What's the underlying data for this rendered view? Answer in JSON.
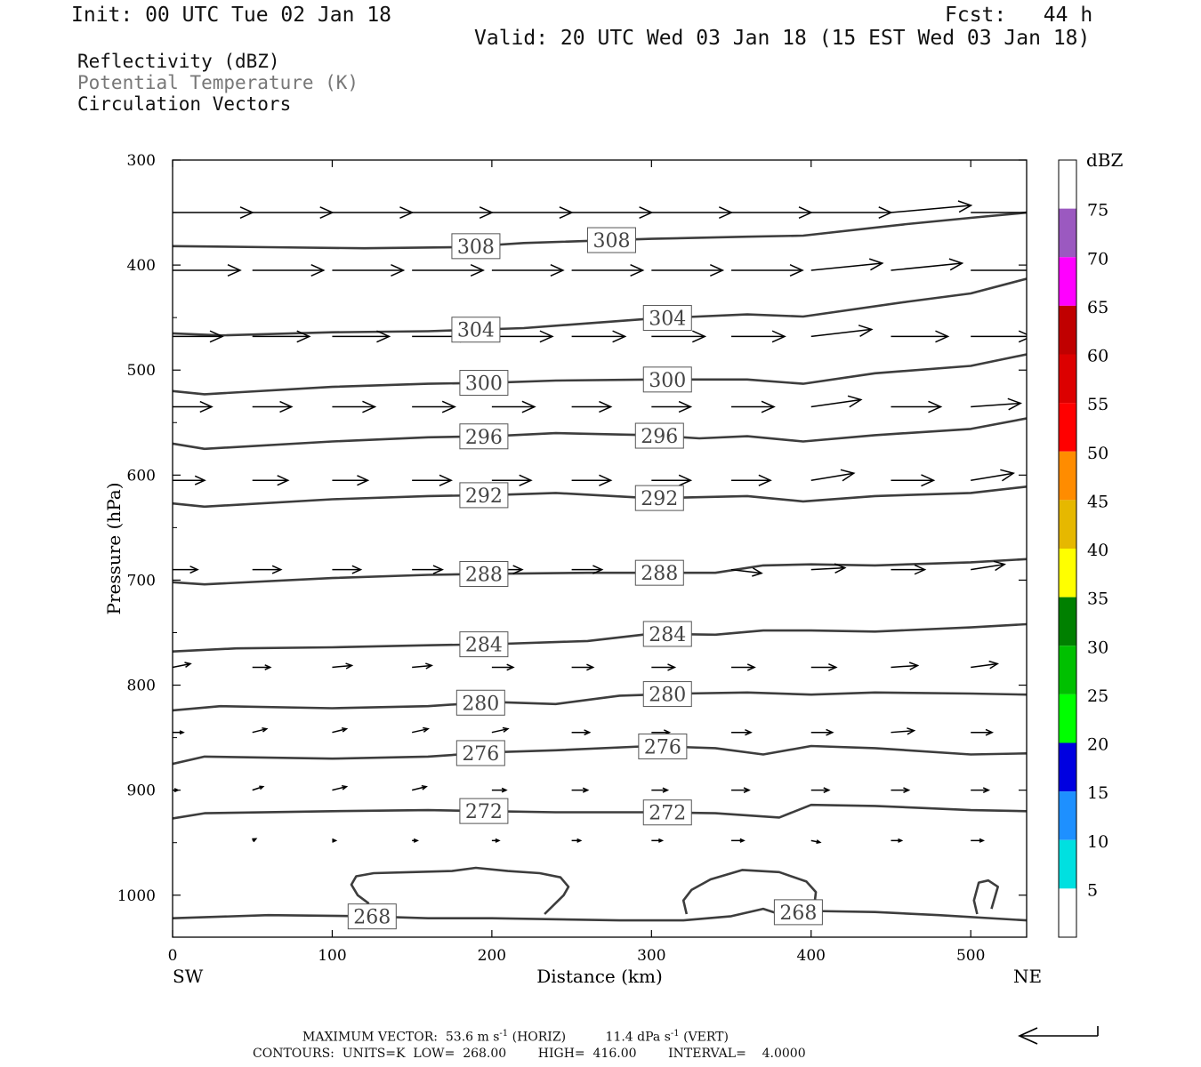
{
  "header": {
    "init": "Init: 00 UTC Tue 02 Jan 18",
    "fcst": "Fcst:   44 h",
    "valid": "Valid: 20 UTC Wed 03 Jan 18 (15 EST Wed 03 Jan 18)"
  },
  "fields": [
    "Reflectivity (dBZ)",
    "Potential Temperature (K)",
    "Circulation Vectors"
  ],
  "colors": {
    "contour": "#3d3d3d",
    "axis": "#000000",
    "label_box": "#555555"
  },
  "chart_data": {
    "type": "cross-section",
    "xlabel": "Distance (km)",
    "ylabel": "Pressure (hPa)",
    "xlim": [
      0,
      535
    ],
    "ylim": [
      1040,
      300
    ],
    "x_ticks": [
      0,
      100,
      200,
      300,
      400,
      500
    ],
    "y_ticks": [
      300,
      400,
      500,
      600,
      700,
      800,
      900,
      1000
    ],
    "x_end_labels": {
      "left": "SW",
      "right": "NE"
    },
    "theta_contours": [
      {
        "level": 308,
        "label": "308",
        "x": [
          0,
          60,
          120,
          180,
          220,
          300,
          360,
          395,
          460,
          500,
          535
        ],
        "p": [
          382,
          383,
          384,
          383,
          379,
          375,
          373,
          372,
          361,
          355,
          350
        ],
        "labels_at": [
          190,
          275
        ]
      },
      {
        "level": 304,
        "label": "304",
        "x": [
          0,
          30,
          100,
          160,
          220,
          300,
          360,
          395,
          460,
          500,
          535
        ],
        "p": [
          465,
          467,
          464,
          463,
          460,
          451,
          447,
          449,
          435,
          427,
          413
        ],
        "labels_at": [
          190,
          310
        ]
      },
      {
        "level": 300,
        "label": "300",
        "x": [
          0,
          20,
          100,
          160,
          200,
          240,
          300,
          360,
          395,
          440,
          500,
          535
        ],
        "p": [
          520,
          523,
          516,
          513,
          512,
          510,
          509,
          509,
          513,
          503,
          496,
          485
        ],
        "labels_at": [
          195,
          310
        ]
      },
      {
        "level": 296,
        "label": "296",
        "x": [
          0,
          20,
          100,
          160,
          200,
          240,
          300,
          330,
          360,
          395,
          440,
          500,
          535
        ],
        "p": [
          570,
          575,
          568,
          564,
          563,
          560,
          562,
          565,
          563,
          568,
          562,
          556,
          546
        ],
        "labels_at": [
          195,
          305
        ]
      },
      {
        "level": 292,
        "label": "292",
        "x": [
          0,
          20,
          100,
          160,
          200,
          240,
          300,
          360,
          395,
          440,
          500,
          535
        ],
        "p": [
          627,
          630,
          623,
          620,
          619,
          617,
          622,
          620,
          625,
          620,
          617,
          611
        ],
        "labels_at": [
          195,
          305
        ]
      },
      {
        "level": 288,
        "label": "288",
        "x": [
          0,
          20,
          100,
          160,
          200,
          260,
          300,
          340,
          370,
          400,
          440,
          500,
          535
        ],
        "p": [
          702,
          704,
          698,
          695,
          694,
          693,
          693,
          693,
          686,
          685,
          686,
          683,
          680
        ],
        "labels_at": [
          195,
          305
        ]
      },
      {
        "level": 284,
        "label": "284",
        "x": [
          0,
          40,
          100,
          160,
          200,
          260,
          300,
          340,
          370,
          400,
          440,
          500,
          535
        ],
        "p": [
          768,
          765,
          764,
          762,
          761,
          758,
          751,
          752,
          748,
          748,
          749,
          745,
          742
        ],
        "labels_at": [
          195,
          310
        ]
      },
      {
        "level": 280,
        "label": "280",
        "x": [
          0,
          30,
          100,
          160,
          200,
          240,
          280,
          320,
          360,
          400,
          440,
          500,
          535
        ],
        "p": [
          824,
          820,
          822,
          820,
          816,
          818,
          810,
          808,
          807,
          809,
          807,
          808,
          809
        ],
        "labels_at": [
          193,
          310
        ]
      },
      {
        "level": 276,
        "label": "276",
        "x": [
          0,
          20,
          100,
          160,
          200,
          240,
          300,
          340,
          370,
          400,
          440,
          500,
          535
        ],
        "p": [
          875,
          868,
          870,
          868,
          864,
          862,
          858,
          860,
          866,
          858,
          860,
          866,
          865
        ],
        "labels_at": [
          193,
          307
        ]
      },
      {
        "level": 272,
        "label": "272",
        "x": [
          0,
          20,
          100,
          160,
          200,
          240,
          300,
          340,
          380,
          400,
          440,
          500,
          535
        ],
        "p": [
          927,
          922,
          920,
          919,
          920,
          921,
          921,
          922,
          926,
          914,
          915,
          919,
          920
        ],
        "labels_at": [
          195,
          310
        ]
      },
      {
        "level": 268,
        "label": "268",
        "x": [
          0,
          60,
          120,
          160,
          200,
          280,
          320,
          350,
          370,
          380,
          400,
          440,
          480,
          535
        ],
        "p": [
          1022,
          1019,
          1020,
          1022,
          1022,
          1024,
          1024,
          1020,
          1013,
          1018,
          1015,
          1016,
          1019,
          1024
        ],
        "labels_at": [
          125,
          392
        ]
      }
    ],
    "closed_contours": [
      {
        "level": 268,
        "x": [
          233,
          245,
          248,
          243,
          230,
          210,
          190,
          175,
          150,
          126,
          115,
          112,
          116,
          123
        ],
        "p": [
          1018,
          1000,
          992,
          983,
          979,
          977,
          974,
          977,
          978,
          979,
          982,
          990,
          1000,
          1008
        ]
      },
      {
        "level": 268,
        "x": [
          322,
          320,
          325,
          337,
          357,
          380,
          397,
          403,
          402
        ],
        "p": [
          1018,
          1005,
          995,
          985,
          976,
          978,
          987,
          997,
          1010
        ]
      },
      {
        "level": 268,
        "x": [
          504,
          502,
          505,
          511,
          517,
          513
        ],
        "p": [
          1018,
          1005,
          988,
          986,
          992,
          1013
        ]
      }
    ],
    "vector_rows": [
      {
        "p": 350,
        "x": [
          0,
          50,
          100,
          150,
          200,
          250,
          300,
          350,
          400,
          450,
          500
        ],
        "u": [
          45,
          45,
          45,
          45,
          45,
          45,
          45,
          45,
          45,
          45,
          45
        ],
        "w": [
          0,
          0,
          0,
          0,
          0,
          0,
          0,
          0,
          0,
          -4,
          0
        ]
      },
      {
        "p": 405,
        "x": [
          0,
          50,
          100,
          150,
          200,
          250,
          300,
          350,
          400,
          450,
          500
        ],
        "u": [
          38,
          40,
          40,
          40,
          40,
          40,
          40,
          40,
          40,
          40,
          40
        ],
        "w": [
          0,
          0,
          0,
          0,
          0,
          0,
          0,
          0,
          -4,
          -4,
          0
        ]
      },
      {
        "p": 468,
        "x": [
          0,
          50,
          100,
          150,
          200,
          250,
          300,
          350,
          400,
          450,
          500
        ],
        "u": [
          28,
          32,
          32,
          34,
          34,
          30,
          30,
          30,
          34,
          32,
          34
        ],
        "w": [
          0,
          0,
          0,
          0,
          0,
          0,
          0,
          0,
          -4,
          0,
          0
        ]
      },
      {
        "p": 535,
        "x": [
          0,
          50,
          100,
          150,
          200,
          250,
          300,
          350,
          400,
          450,
          500
        ],
        "u": [
          22,
          22,
          24,
          24,
          24,
          22,
          22,
          24,
          28,
          28,
          28
        ],
        "w": [
          0,
          0,
          0,
          0,
          0,
          0,
          0,
          0,
          -4,
          0,
          -2
        ]
      },
      {
        "p": 605,
        "x": [
          0,
          50,
          100,
          150,
          200,
          250,
          300,
          350,
          400,
          450,
          500
        ],
        "u": [
          18,
          20,
          20,
          22,
          22,
          22,
          22,
          22,
          24,
          24,
          24
        ],
        "w": [
          0,
          0,
          0,
          0,
          0,
          0,
          0,
          0,
          -4,
          0,
          -4
        ]
      },
      {
        "p": 690,
        "x": [
          0,
          50,
          100,
          150,
          200,
          250,
          300,
          350,
          400,
          450,
          500
        ],
        "u": [
          14,
          16,
          16,
          17,
          17,
          17,
          17,
          17,
          19,
          19,
          19
        ],
        "w": [
          0,
          0,
          0,
          0,
          0,
          0,
          0,
          2,
          -1,
          0,
          -3
        ]
      },
      {
        "p": 783,
        "x": [
          0,
          50,
          100,
          150,
          200,
          250,
          300,
          350,
          400,
          450,
          500
        ],
        "u": [
          10,
          10,
          11,
          11,
          12,
          12,
          13,
          13,
          14,
          15,
          15
        ],
        "w": [
          -2,
          0,
          -1,
          -1,
          0,
          0,
          0,
          0,
          0,
          -1,
          -2
        ]
      },
      {
        "p": 845,
        "x": [
          0,
          50,
          100,
          150,
          200,
          250,
          300,
          350,
          400,
          450,
          500
        ],
        "u": [
          6,
          8,
          8,
          9,
          9,
          10,
          10,
          11,
          12,
          13,
          12
        ],
        "w": [
          0,
          -2,
          -2,
          -2,
          -2,
          0,
          0,
          0,
          0,
          -1,
          0
        ]
      },
      {
        "p": 900,
        "x": [
          0,
          50,
          100,
          150,
          200,
          250,
          300,
          350,
          400,
          450,
          500
        ],
        "u": [
          3,
          6,
          8,
          8,
          8,
          9,
          9,
          10,
          10,
          10,
          10
        ],
        "w": [
          0,
          -2,
          -2,
          -2,
          0,
          0,
          0,
          0,
          0,
          0,
          0
        ]
      },
      {
        "p": 948,
        "x": [
          50,
          100,
          150,
          200,
          250,
          300,
          350,
          400,
          450,
          500
        ],
        "u": [
          2,
          2,
          3,
          4,
          5,
          6,
          7,
          5,
          6,
          7
        ],
        "w": [
          -1,
          0,
          0,
          0,
          0,
          0,
          0,
          1,
          0,
          0
        ]
      }
    ],
    "colorbar": {
      "title": "dBZ",
      "labels": [
        "75",
        "70",
        "65",
        "60",
        "55",
        "50",
        "45",
        "40",
        "35",
        "30",
        "25",
        "20",
        "15",
        "10",
        "5"
      ],
      "bin_colors_top_to_bottom": [
        "#ffffff",
        "#9b59c0",
        "#ff00ff",
        "#c00000",
        "#dc0000",
        "#ff0000",
        "#ff8c00",
        "#e6b800",
        "#ffff00",
        "#008000",
        "#00c000",
        "#00ff00",
        "#0000e0",
        "#1e90ff",
        "#00e0e0",
        "#ffffff"
      ]
    },
    "footer": {
      "line1": "MAXIMUM VECTOR:  53.6 m s",
      "line1_exp": "-1",
      "line1_b": " (HORIZ)          11.4 dPa s",
      "line1_exp2": "-1",
      "line1_c": " (VERT)",
      "line2": "CONTOURS:  UNITS=K  LOW=  268.00        HIGH=  416.00        INTERVAL=    4.0000"
    }
  }
}
